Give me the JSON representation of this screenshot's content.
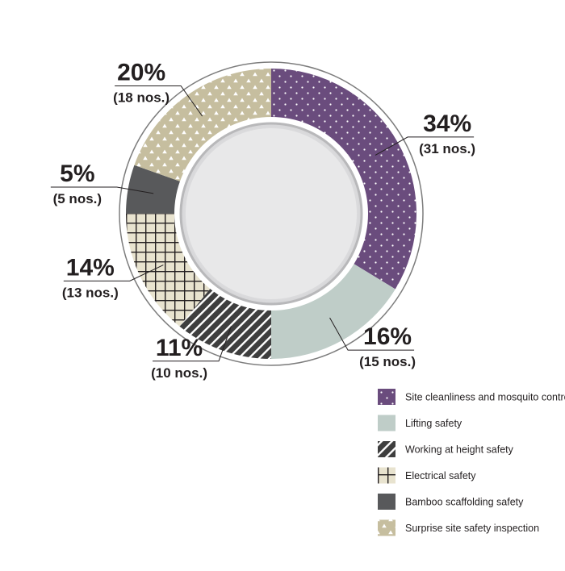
{
  "chart_data": {
    "type": "pie",
    "style": "donut",
    "legend_position": "bottom-right",
    "slices": [
      {
        "label": "Site cleanliness and mosquito control",
        "percent_label": "34%",
        "count_label": "(31 nos.)",
        "value": 31,
        "color": "#6a4c7d",
        "pattern": "dots"
      },
      {
        "label": "Lifting safety",
        "percent_label": "16%",
        "count_label": "(15 nos.)",
        "value": 15,
        "color": "#bfcdc8",
        "pattern": "solid"
      },
      {
        "label": "Working at height safety",
        "percent_label": "11%",
        "count_label": "(10 nos.)",
        "value": 10,
        "color": "#3e3e3e",
        "pattern": "diagonal-stripes"
      },
      {
        "label": "Electrical safety",
        "percent_label": "14%",
        "count_label": "(13 nos.)",
        "value": 13,
        "color": "#e8e3cf",
        "pattern": "grid"
      },
      {
        "label": "Bamboo scaffolding safety",
        "percent_label": "5%",
        "count_label": "(5 nos.)",
        "value": 5,
        "color": "#58595b",
        "pattern": "solid"
      },
      {
        "label": "Surprise site safety inspection",
        "percent_label": "20%",
        "count_label": "(18 nos.)",
        "value": 18,
        "color": "#c6be9f",
        "pattern": "triangles"
      }
    ]
  }
}
